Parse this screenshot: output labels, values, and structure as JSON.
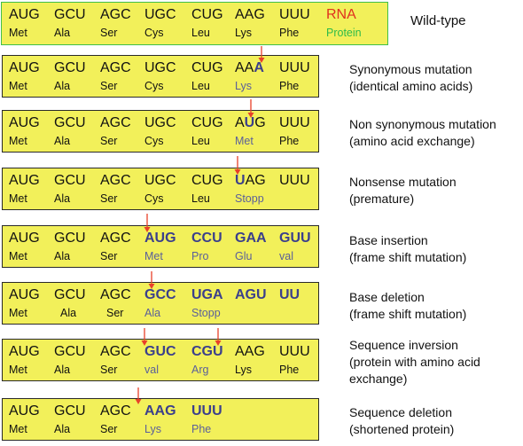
{
  "rows": [
    {
      "id": "wild-type",
      "label": [
        "Wild-type"
      ],
      "codons": [
        "AUG",
        "GCU",
        "AGC",
        "UGC",
        "CUG",
        "AAG",
        "UUU",
        "RNA"
      ],
      "aminos": [
        "Met",
        "Ala",
        "Ser",
        "Cys",
        "Leu",
        "Lys",
        "Phe",
        "Protein"
      ],
      "highlight_codons": [],
      "highlight_aminos": [],
      "label_colors": {
        "codon": "#e0301e",
        "amino": "#2dbb4a"
      },
      "mutated_letter": null
    },
    {
      "id": "synonymous",
      "label": [
        "Synonymous mutation",
        "(identical amino acids)"
      ],
      "codons": [
        "AUG",
        "GCU",
        "AGC",
        "UGC",
        "CUG",
        "AAA",
        "UUU"
      ],
      "aminos": [
        "Met",
        "Ala",
        "Ser",
        "Cys",
        "Leu",
        "Lys",
        "Phe"
      ],
      "highlight_codons": [],
      "highlight_aminos": [
        5
      ],
      "mutated_letter": {
        "codon": 5,
        "pos": 2
      }
    },
    {
      "id": "non-synonymous",
      "label": [
        "Non synonymous mutation",
        "(amino acid exchange)"
      ],
      "codons": [
        "AUG",
        "GCU",
        "AGC",
        "UGC",
        "CUG",
        "AUG",
        "UUU"
      ],
      "aminos": [
        "Met",
        "Ala",
        "Ser",
        "Cys",
        "Leu",
        "Met",
        "Phe"
      ],
      "highlight_codons": [],
      "highlight_aminos": [
        5
      ],
      "mutated_letter": {
        "codon": 5,
        "pos": 1
      }
    },
    {
      "id": "nonsense",
      "label": [
        "Nonsense mutation",
        "(premature)"
      ],
      "codons": [
        "AUG",
        "GCU",
        "AGC",
        "UGC",
        "CUG",
        "UAG",
        "UUU"
      ],
      "aminos": [
        "Met",
        "Ala",
        "Ser",
        "Cys",
        "Leu",
        "Stopp",
        ""
      ],
      "highlight_codons": [],
      "highlight_aminos": [
        5
      ],
      "mutated_letter": {
        "codon": 5,
        "pos": 0
      }
    },
    {
      "id": "base-insertion",
      "label": [
        "Base insertion",
        "(frame shift mutation)"
      ],
      "codons": [
        "AUG",
        "GCU",
        "AGC",
        "AUG",
        "CCU",
        "GAA",
        "GUU"
      ],
      "aminos": [
        "Met",
        "Ala",
        "Ser",
        "Met",
        "Pro",
        "Glu",
        "val"
      ],
      "highlight_codons": [
        3,
        4,
        5,
        6
      ],
      "highlight_aminos": [
        3,
        4,
        5,
        6
      ],
      "mutated_letter": null
    },
    {
      "id": "base-deletion",
      "label": [
        "Base deletion",
        "(frame shift mutation)"
      ],
      "codons": [
        "AUG",
        "GCU",
        "AGC",
        "GCC",
        "UGA",
        "AGU",
        "UU"
      ],
      "aminos": [
        "Met",
        "Ala",
        "Ser",
        "Ala",
        "Stopp",
        "",
        ""
      ],
      "highlight_codons": [
        3,
        4,
        5,
        6
      ],
      "highlight_aminos": [
        3,
        4
      ],
      "mutated_letter": null
    },
    {
      "id": "sequence-inversion",
      "label": [
        "Sequence inversion",
        "(protein with amino acid",
        "exchange)"
      ],
      "codons": [
        "AUG",
        "GCU",
        "AGC",
        "GUC",
        "CGU",
        "AAG",
        "UUU"
      ],
      "aminos": [
        "Met",
        "Ala",
        "Ser",
        "val",
        "Arg",
        "Lys",
        "Phe"
      ],
      "highlight_codons": [
        3,
        4
      ],
      "highlight_aminos": [
        3,
        4
      ],
      "mutated_letter": null
    },
    {
      "id": "sequence-deletion",
      "label": [
        "Sequence deletion",
        "(shortened protein)"
      ],
      "codons": [
        "AUG",
        "GCU",
        "AGC",
        "AAG",
        "UUU",
        "",
        ""
      ],
      "aminos": [
        "Met",
        "Ala",
        "Ser",
        "Lys",
        "Phe",
        "",
        ""
      ],
      "highlight_codons": [
        3,
        4
      ],
      "highlight_aminos": [
        3,
        4
      ],
      "mutated_letter": null
    }
  ],
  "colors": {
    "box_fill": "#f2f05a",
    "highlight_codon": "#3b3f8c",
    "highlight_amino": "#5a5f9a",
    "arrow": "#e8402a",
    "wild_border": "#3fbf4a"
  }
}
